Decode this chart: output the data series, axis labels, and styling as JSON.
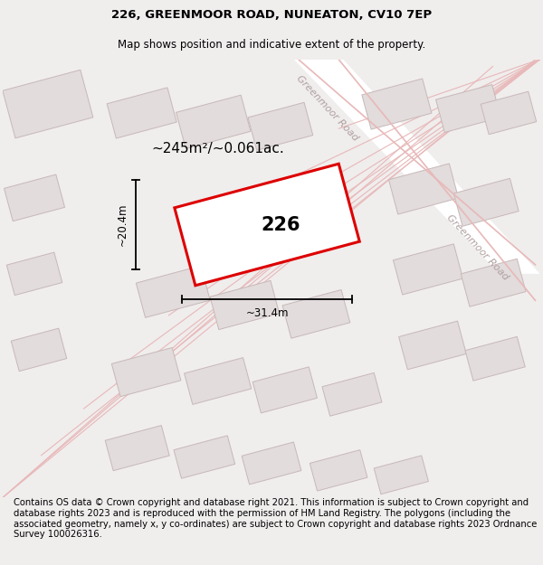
{
  "title_line1": "226, GREENMOOR ROAD, NUNEATON, CV10 7EP",
  "title_line2": "Map shows position and indicative extent of the property.",
  "area_text": "~245m²/~0.061ac.",
  "number_label": "226",
  "dim_vertical": "~20.4m",
  "dim_horizontal": "~31.4m",
  "road_label_top": "Greenmoor Road",
  "road_label_right": "Greenmoor Road",
  "footer_text": "Contains OS data © Crown copyright and database right 2021. This information is subject to Crown copyright and database rights 2023 and is reproduced with the permission of HM Land Registry. The polygons (including the associated geometry, namely x, y co-ordinates) are subject to Crown copyright and database rights 2023 Ordnance Survey 100026316.",
  "bg_color": "#f0eded",
  "map_bg": "#ffffff",
  "plot_outline_color": "#dd0000",
  "road_stripe_color": "#f2dede",
  "block_fill": "#e2dcdc",
  "block_edge": "#c8b8b8",
  "road_line_color": "#e8b8b8",
  "road_label_color": "#b0a0a0",
  "title_fontsize": 9.5,
  "subtitle_fontsize": 8.5,
  "footer_fontsize": 7.2
}
